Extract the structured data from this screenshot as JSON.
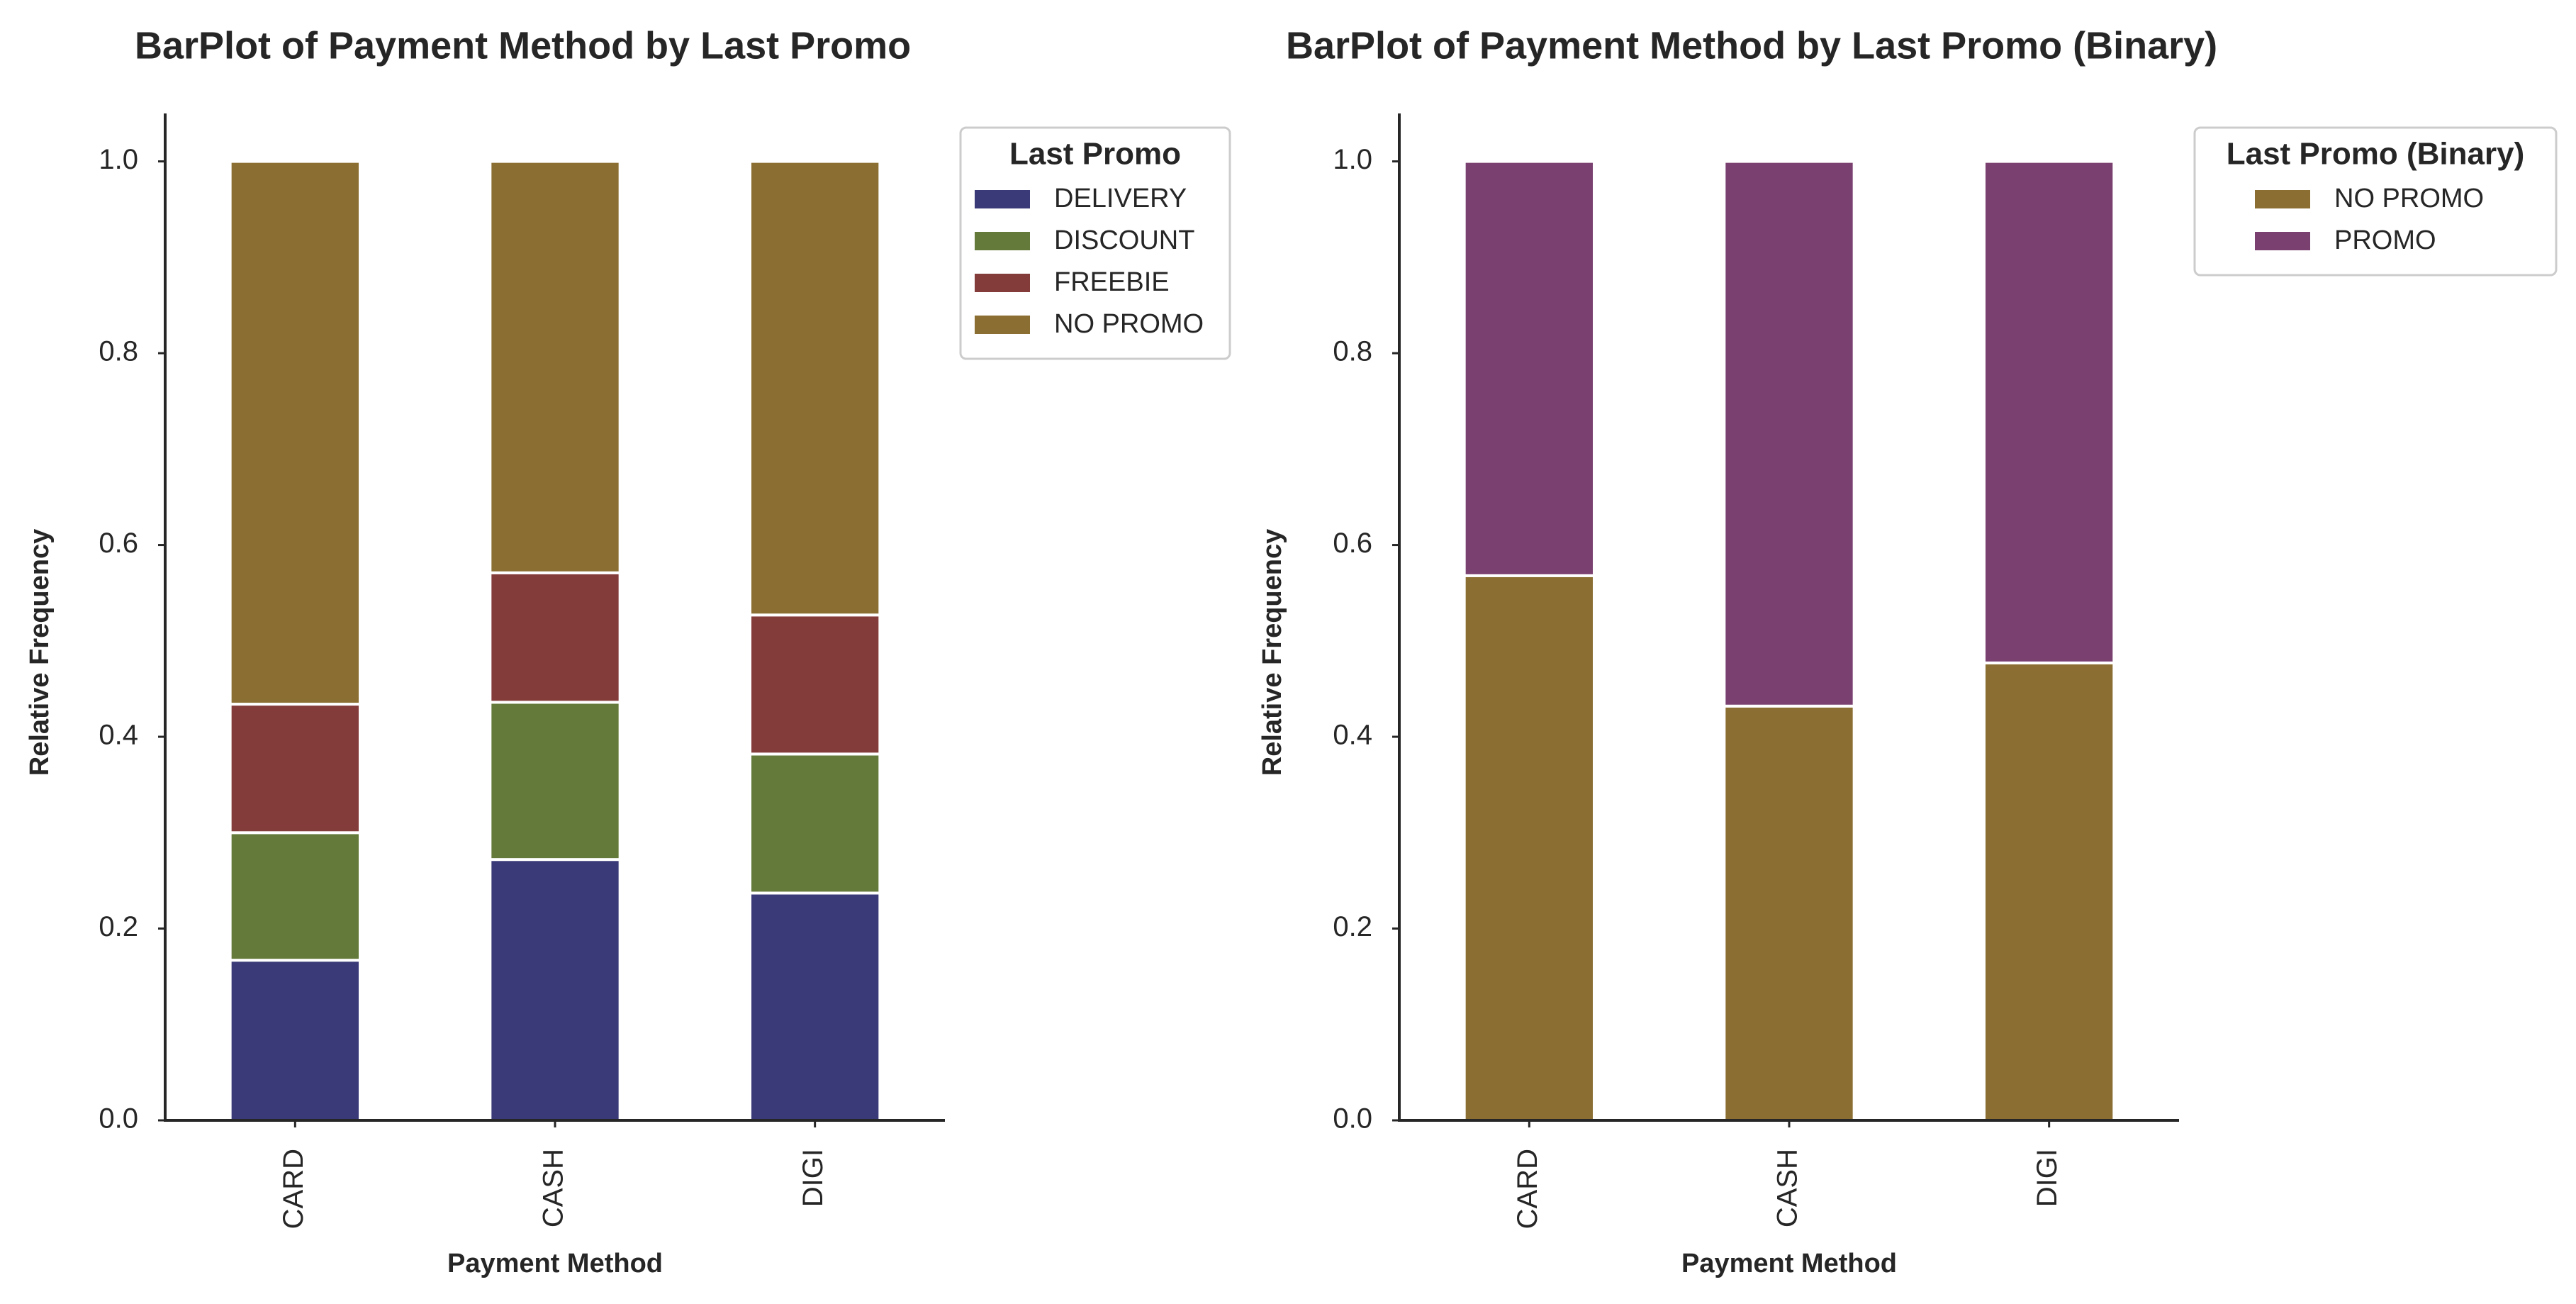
{
  "chart_data": [
    {
      "type": "bar",
      "stacked": true,
      "title": "BarPlot of Payment Method by Last Promo",
      "xlabel": "Payment Method",
      "ylabel": "Relative Frequency",
      "ylim": [
        0,
        1.05
      ],
      "yticks": [
        "0.0",
        "0.2",
        "0.4",
        "0.6",
        "0.8",
        "1.0"
      ],
      "categories": [
        "CARD",
        "CASH",
        "DIGI"
      ],
      "legend_title": "Last Promo",
      "legend_position": "upper-right-outside",
      "grid": false,
      "series": [
        {
          "name": "DELIVERY",
          "color": "#3a3a78",
          "values": [
            0.167,
            0.272,
            0.237
          ]
        },
        {
          "name": "DISCOUNT",
          "color": "#647a3a",
          "values": [
            0.133,
            0.164,
            0.145
          ]
        },
        {
          "name": "FREEBIE",
          "color": "#843c3a",
          "values": [
            0.134,
            0.135,
            0.145
          ]
        },
        {
          "name": "NO PROMO",
          "color": "#8b6e31",
          "values": [
            0.566,
            0.429,
            0.473
          ]
        }
      ]
    },
    {
      "type": "bar",
      "stacked": true,
      "title": "BarPlot of Payment Method by Last Promo (Binary)",
      "xlabel": "Payment Method",
      "ylabel": "Relative Frequency",
      "ylim": [
        0,
        1.05
      ],
      "yticks": [
        "0.0",
        "0.2",
        "0.4",
        "0.6",
        "0.8",
        "1.0"
      ],
      "categories": [
        "CARD",
        "CASH",
        "DIGI"
      ],
      "legend_title": "Last Promo (Binary)",
      "legend_position": "upper-right-outside",
      "grid": false,
      "series": [
        {
          "name": "NO PROMO",
          "color": "#8b6e31",
          "values": [
            0.568,
            0.432,
            0.477
          ]
        },
        {
          "name": "PROMO",
          "color": "#7a4070",
          "values": [
            0.432,
            0.568,
            0.523
          ]
        }
      ]
    }
  ]
}
